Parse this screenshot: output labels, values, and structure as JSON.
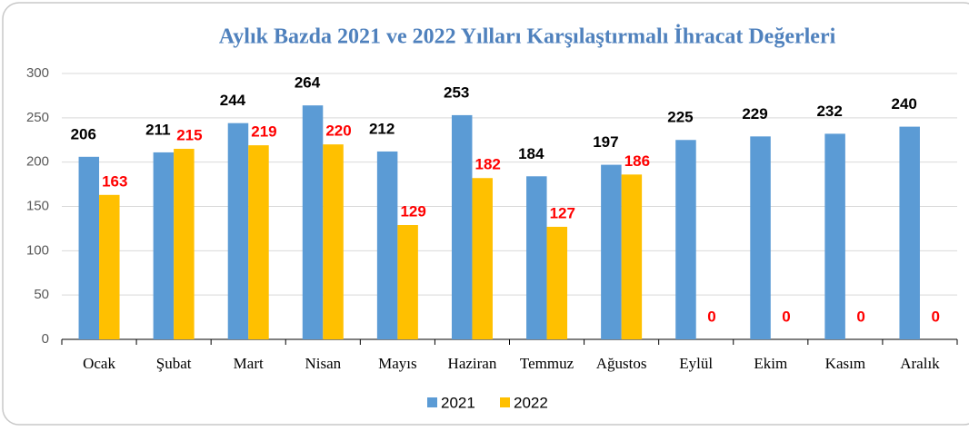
{
  "chart_data": {
    "type": "bar",
    "title": "Aylık Bazda  2021 ve 2022 Yılları Karşılaştırmalı İhracat Değerleri",
    "categories": [
      "Ocak",
      "Şubat",
      "Mart",
      "Nisan",
      "Mayıs",
      "Haziran",
      "Temmuz",
      "Ağustos",
      "Eylül",
      "Ekim",
      "Kasım",
      "Aralık"
    ],
    "series": [
      {
        "name": "2021",
        "color": "#5b9bd5",
        "values": [
          206,
          211,
          244,
          264,
          212,
          253,
          184,
          197,
          225,
          229,
          232,
          240
        ]
      },
      {
        "name": "2022",
        "color": "#ffc000",
        "values": [
          163,
          215,
          219,
          220,
          129,
          182,
          127,
          186,
          0,
          0,
          0,
          0
        ]
      }
    ],
    "ylim": [
      0,
      300
    ],
    "yticks": [
      0,
      50,
      100,
      150,
      200,
      250,
      300
    ],
    "grid": true,
    "legend": "bottom"
  }
}
